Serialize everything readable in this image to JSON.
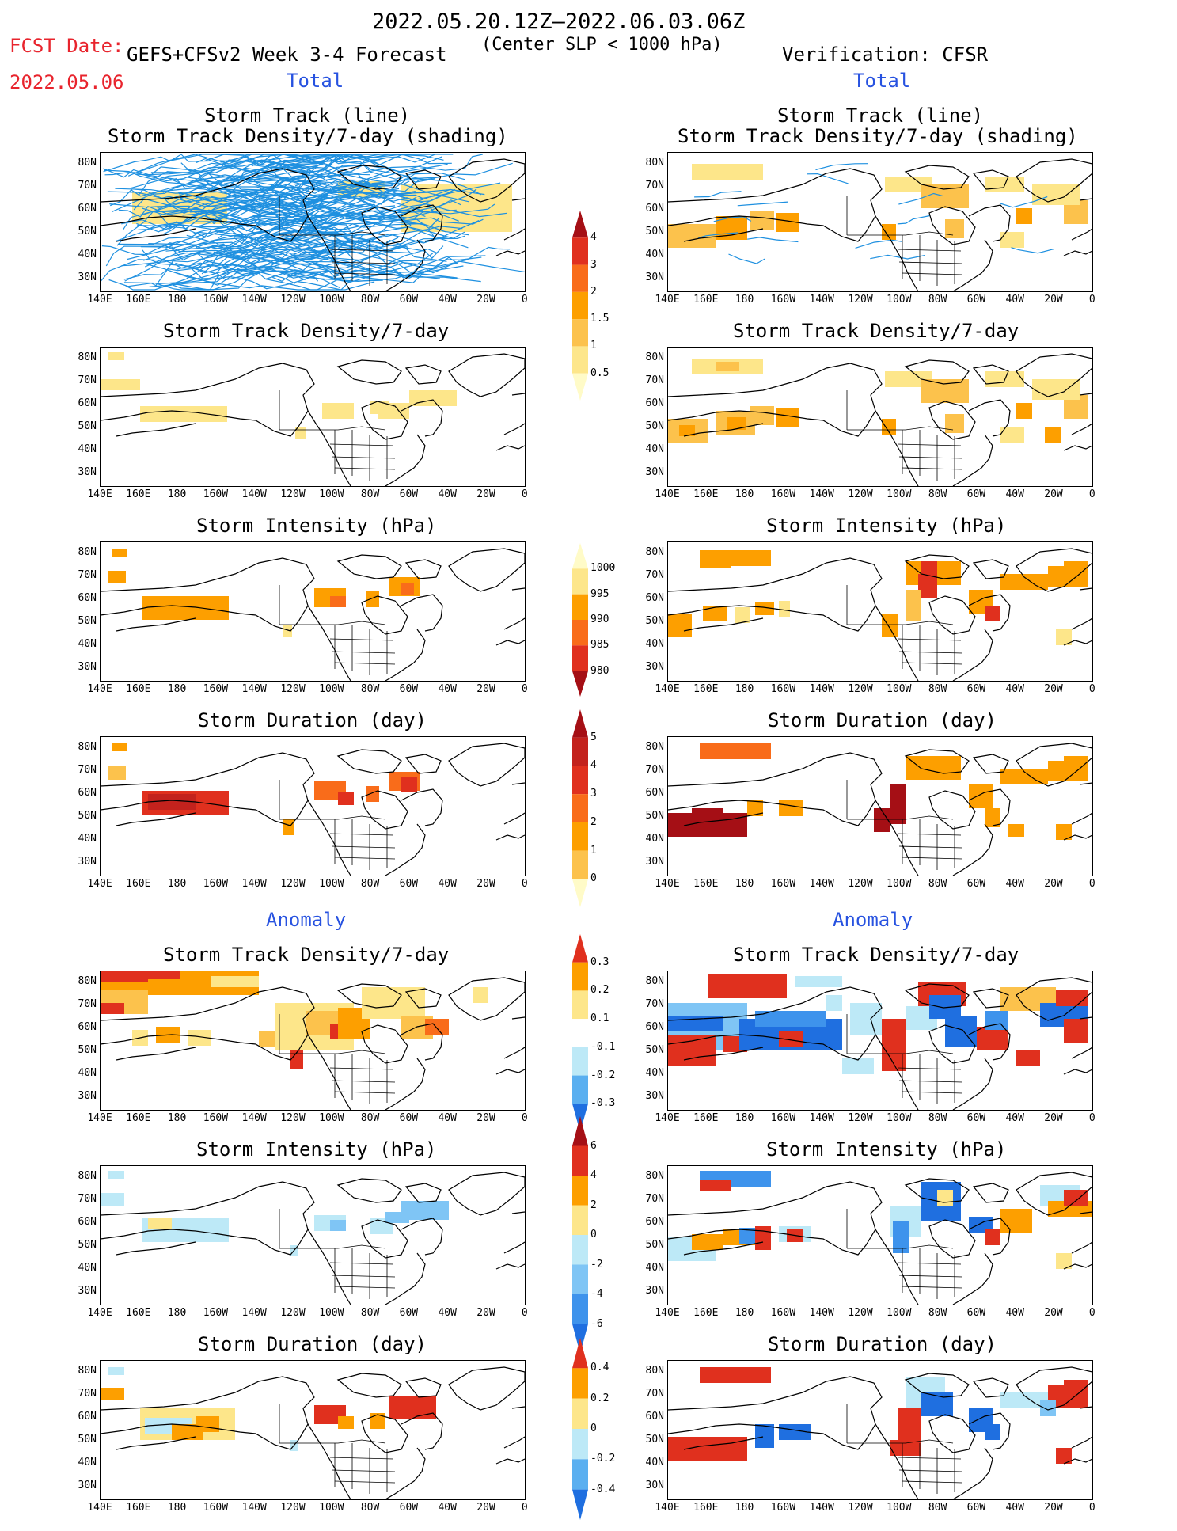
{
  "header": {
    "date_range": "2022.05.20.12Z—2022.06.03.06Z",
    "fcst_label": "FCST Date:",
    "fcst_date": "2022.05.06",
    "model_title": "GEFS+CFSv2 Week 3-4 Forecast",
    "condition": "(Center SLP < 1000 hPa)",
    "verification": "Verification: CFSR"
  },
  "sections": {
    "total": "Total",
    "anomaly": "Anomaly"
  },
  "panel_titles": {
    "track_line": "Storm Track (line)",
    "track_shading": "Storm Track Density/7-day (shading)",
    "density": "Storm Track Density/7-day",
    "intensity": "Storm Intensity (hPa)",
    "duration": "Storm Duration (day)"
  },
  "axes": {
    "lat_labels": [
      "80N",
      "70N",
      "60N",
      "50N",
      "40N",
      "30N"
    ],
    "lon_labels": [
      "140E",
      "160E",
      "180",
      "160W",
      "140W",
      "120W",
      "100W",
      "80W",
      "60W",
      "40W",
      "20W",
      "0"
    ]
  },
  "colorbars": {
    "density_total": {
      "labels": [
        "4",
        "3",
        "2",
        "1.5",
        "1",
        "0.5"
      ],
      "colors": [
        "#a50f15",
        "#e0301e",
        "#f96c1a",
        "#fd9f00",
        "#fcc24c",
        "#fde68a",
        "#fffbc8"
      ]
    },
    "intensity_total": {
      "labels": [
        "1000",
        "995",
        "990",
        "985",
        "980"
      ],
      "colors": [
        "#fffbc8",
        "#fde68a",
        "#fd9f00",
        "#f96c1a",
        "#e0301e",
        "#a50f15"
      ]
    },
    "duration_total": {
      "labels": [
        "5",
        "4",
        "3",
        "2",
        "1",
        "0"
      ],
      "colors": [
        "#a50f15",
        "#c3221d",
        "#e0301e",
        "#f96c1a",
        "#fd9f00",
        "#fcc24c",
        "#fffbc8"
      ]
    },
    "density_anom": {
      "labels": [
        "0.3",
        "0.2",
        "0.1",
        "-0.1",
        "-0.2",
        "-0.3"
      ],
      "colors": [
        "#e0301e",
        "#fd9f00",
        "#fde68a",
        "#ffffff",
        "#bde9f7",
        "#5aaff0",
        "#1f6fe0"
      ]
    },
    "intensity_anom": {
      "labels": [
        "6",
        "4",
        "2",
        "0",
        "-2",
        "-4",
        "-6"
      ],
      "colors": [
        "#a50f15",
        "#e0301e",
        "#fd9f00",
        "#fde68a",
        "#bde9f7",
        "#7fc5f5",
        "#3e93ec",
        "#1f6fe0"
      ]
    },
    "duration_anom": {
      "labels": [
        "0.4",
        "0.2",
        "0",
        "-0.2",
        "-0.4"
      ],
      "colors": [
        "#e0301e",
        "#fd9f00",
        "#fde68a",
        "#bde9f7",
        "#5aaff0",
        "#1f6fe0"
      ]
    }
  }
}
